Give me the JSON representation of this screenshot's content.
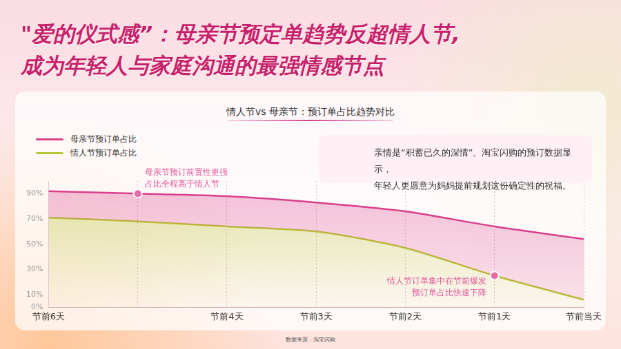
{
  "chart_data": {
    "type": "line",
    "title": [
      "\"爱的仪式感”：母亲节预定单趋势反超情人节,",
      "成为年轻人与家庭沟通的最强情感节点"
    ],
    "subtitle": "情人节vs 母亲节：预订单占比趋势对比",
    "categories": [
      "节前6天",
      null,
      "节前4天",
      "节前3天",
      "节前2天",
      "节前1天",
      "节前当天"
    ],
    "series": [
      {
        "name": "母亲节预订单占比",
        "color": "#d8408c",
        "values": [
          92,
          90,
          88,
          83,
          76,
          64,
          54
        ]
      },
      {
        "name": "情人节预订单占比",
        "color": "#b8c434",
        "values": [
          71,
          68,
          64,
          60,
          47,
          25,
          6
        ]
      }
    ],
    "ylim": [
      0,
      100
    ],
    "yticks": [
      {
        "value": 0,
        "label": "0%"
      },
      {
        "value": 10,
        "label": "10%"
      },
      {
        "value": 30,
        "label": "30%"
      },
      {
        "value": 50,
        "label": "50%"
      },
      {
        "value": 70,
        "label": "70%"
      },
      {
        "value": 90,
        "label": "90%"
      }
    ],
    "grid": true,
    "legend": "top-left",
    "annotations": [
      {
        "text": [
          "母亲节预订前置性更强",
          "占比全程高于情人节"
        ]
      },
      {
        "text": [
          "情人节订单集中在节前爆发",
          "预订单占比快速下降"
        ]
      }
    ],
    "quote": [
      "亲情是“积蓄已久的深情”。淘宝闪购的预订数据显示，",
      "年轻人更愿意为妈妈提前规划这份确定性的祝福。"
    ],
    "source": "数据来源：淘宝闪购"
  }
}
